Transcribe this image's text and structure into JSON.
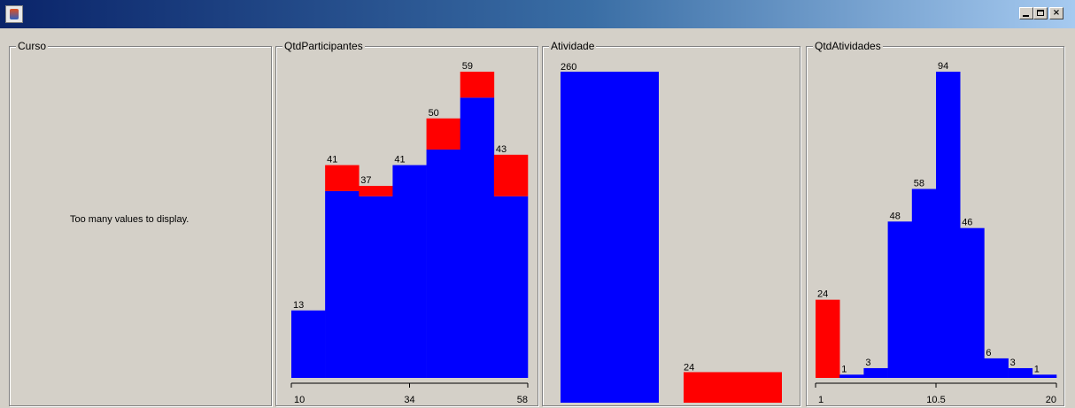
{
  "window": {
    "title": "",
    "buttons": {
      "minimize": "_",
      "maximize": "",
      "close": "×"
    }
  },
  "panels": [
    {
      "title": "Curso",
      "message": "Too many values to display."
    },
    {
      "title": "QtdParticipantes"
    },
    {
      "title": "Atividade"
    },
    {
      "title": "QtdAtividades"
    }
  ],
  "colors": {
    "class_a": "#0000ff",
    "class_b": "#ff0000"
  },
  "chart_data": [
    {
      "type": "bar",
      "panel": "QtdParticipantes",
      "stacked": true,
      "ylim": [
        0,
        59
      ],
      "bin_labels": [
        "13",
        "41",
        "37",
        "41",
        "50",
        "59",
        "43"
      ],
      "series": [
        {
          "color": "#0000ff",
          "values": [
            13,
            36,
            35,
            41,
            44,
            54,
            35
          ]
        },
        {
          "color": "#ff0000",
          "values": [
            0,
            5,
            2,
            0,
            6,
            5,
            8
          ]
        }
      ],
      "x_ticks": [
        "10",
        "34",
        "58"
      ]
    },
    {
      "type": "bar",
      "panel": "Atividade",
      "ylim": [
        0,
        260
      ],
      "bars": [
        {
          "label": "260",
          "value": 260,
          "color": "#0000ff"
        },
        {
          "label": "24",
          "value": 24,
          "color": "#ff0000"
        }
      ]
    },
    {
      "type": "bar",
      "panel": "QtdAtividades",
      "stacked": true,
      "ylim": [
        0,
        94
      ],
      "bin_labels": [
        "24",
        "1",
        "3",
        "48",
        "58",
        "94",
        "46",
        "6",
        "3",
        "1"
      ],
      "series": [
        {
          "color": "#0000ff",
          "values": [
            0,
            1,
            3,
            48,
            58,
            94,
            46,
            6,
            3,
            1
          ]
        },
        {
          "color": "#ff0000",
          "values": [
            24,
            0,
            0,
            0,
            0,
            0,
            0,
            0,
            0,
            0
          ]
        }
      ],
      "x_ticks": [
        "1",
        "10.5",
        "20"
      ]
    }
  ]
}
